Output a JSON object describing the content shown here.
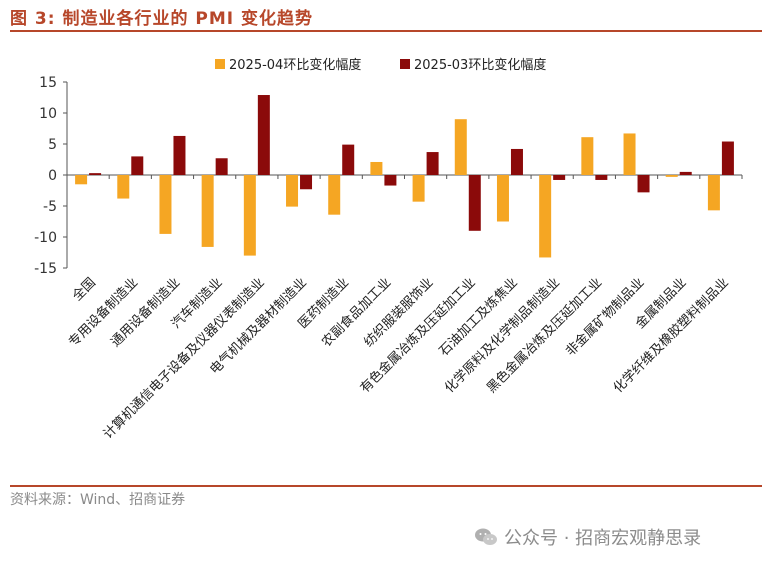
{
  "figure_title": "图 3:  制造业各行业的 PMI 变化趋势",
  "source": "资料来源：Wind、招商证券",
  "watermark": "公众号 · 招商宏观静思录",
  "chart_data": {
    "type": "bar",
    "title": "",
    "xlabel": "",
    "ylabel": "",
    "ylim": [
      -15,
      15
    ],
    "yticks": [
      15,
      10,
      5,
      0,
      -5,
      -10,
      -15
    ],
    "legend_position": "top-center",
    "categories": [
      "全国",
      "专用设备制造业",
      "通用设备制造业",
      "汽车制造业",
      "计算机通信电子设备及仪器仪表制造业",
      "电气机械及器材制造业",
      "医药制造业",
      "农副食品加工业",
      "纺织服装服饰业",
      "有色金属冶炼及压延加工业",
      "石油加工及炼焦业",
      "化学原料及化学制品制造业",
      "黑色金属冶炼及压延加工业",
      "非金属矿物制品业",
      "金属制品业",
      "化学纤维及橡胶塑料制品业"
    ],
    "series": [
      {
        "name": "2025-04环比变化幅度",
        "color": "#f5a623",
        "values": [
          -1.5,
          -3.8,
          -9.5,
          -11.6,
          -13.0,
          -5.1,
          -6.4,
          2.1,
          -4.3,
          9.0,
          -7.5,
          -13.3,
          6.1,
          6.7,
          -0.3,
          -5.7
        ]
      },
      {
        "name": "2025-03环比变化幅度",
        "color": "#8b0a0a",
        "values": [
          0.3,
          3.0,
          6.3,
          2.7,
          12.9,
          -2.3,
          4.9,
          -1.7,
          3.7,
          -9.0,
          4.2,
          -0.8,
          -0.8,
          -2.8,
          0.5,
          5.4
        ]
      }
    ]
  }
}
